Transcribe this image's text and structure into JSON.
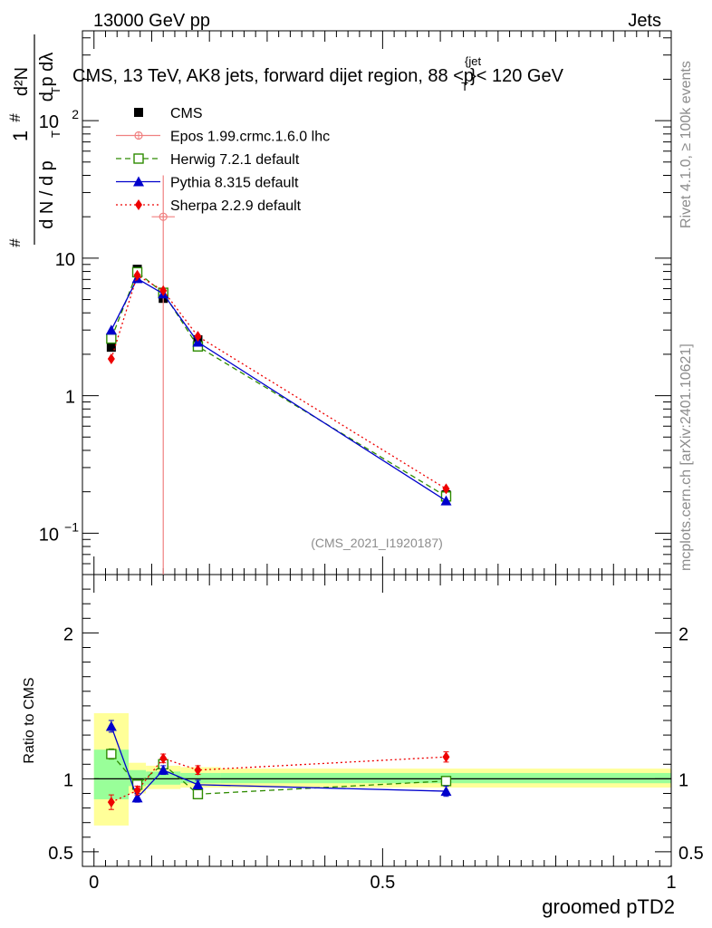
{
  "header": {
    "energy_label": "13000 GeV pp",
    "category_label": "Jets",
    "rivet_label": "Rivet 4.1.0, ≥ 100k events",
    "source_label": "mcplots.cern.ch [arXiv:2401.10621]",
    "analysis_id": "(CMS_2021_I1920187)"
  },
  "chart_data": [
    {
      "type": "line",
      "panel": "main",
      "title_prefix": "CMS, 13 TeV, AK8 jets, forward dijet region, 88 <p",
      "title_sup": "{jet",
      "title_sub": "T",
      "title_suffix": "}< 120 GeV",
      "ylabel": "1/dN/dpT dN/dpT dλ",
      "yscale": "log",
      "ylim": [
        0.05,
        450
      ],
      "xlim": [
        -0.02,
        1.0
      ],
      "yticks": [
        {
          "value": 0.1,
          "label_base": "10",
          "label_exp": "−1"
        },
        {
          "value": 1,
          "label_base": "1",
          "label_exp": ""
        },
        {
          "value": 10,
          "label_base": "10",
          "label_exp": ""
        },
        {
          "value": 100,
          "label_base": "10",
          "label_exp": "2"
        }
      ],
      "x": [
        0.03,
        0.075,
        0.12,
        0.18,
        0.61
      ],
      "series": [
        {
          "name": "CMS",
          "color": "#000000",
          "marker": "square-filled",
          "dash": "none",
          "connect": false,
          "values": [
            2.25,
            8.3,
            5.1,
            2.55,
            0.19
          ],
          "errors": [
            0.12,
            0.3,
            0.25,
            0.12,
            0.01
          ]
        },
        {
          "name": "Epos 1.99.crmc.1.6.0 lhc",
          "color": "#f08080",
          "marker": "circle-plus",
          "dash": "none",
          "connect": false,
          "points": [
            {
              "x": 0.12,
              "y": 20,
              "yerr_low": 20,
              "yerr_high": 20,
              "xerr": 0.02
            }
          ]
        },
        {
          "name": "Herwig 7.2.1 default",
          "color": "#2e8b00",
          "marker": "square-open",
          "dash": "6,4",
          "values": [
            2.6,
            7.9,
            5.6,
            2.28,
            0.185
          ]
        },
        {
          "name": "Pythia 8.315 default",
          "color": "#0000cc",
          "marker": "triangle-filled",
          "dash": "none",
          "values": [
            3.0,
            7.1,
            5.5,
            2.45,
            0.172
          ]
        },
        {
          "name": "Sherpa 2.2.9 default",
          "color": "#ee0000",
          "marker": "diamond-filled",
          "dash": "2,3",
          "values": [
            1.85,
            7.5,
            5.8,
            2.7,
            0.21
          ]
        }
      ]
    },
    {
      "type": "line",
      "panel": "ratio",
      "ylabel": "Ratio to CMS",
      "xlabel": "groomed pTD2",
      "ylim": [
        0.4,
        2.4
      ],
      "xlim": [
        -0.02,
        1.0
      ],
      "yticks": [
        {
          "value": 0.5,
          "label": "0.5"
        },
        {
          "value": 1,
          "label": "1"
        },
        {
          "value": 2,
          "label": "2"
        }
      ],
      "xticks": [
        {
          "value": 0,
          "label": "0"
        },
        {
          "value": 0.5,
          "label": "0.5"
        },
        {
          "value": 1,
          "label": "1"
        }
      ],
      "bands": [
        {
          "x0": 0.0,
          "x1": 0.06,
          "yellow": [
            0.68,
            1.45
          ],
          "green": [
            0.86,
            1.2
          ]
        },
        {
          "x0": 0.06,
          "x1": 0.09,
          "yellow": [
            0.9,
            1.11
          ],
          "green": [
            0.95,
            1.06
          ]
        },
        {
          "x0": 0.09,
          "x1": 0.15,
          "yellow": [
            0.93,
            1.09
          ],
          "green": [
            0.96,
            1.05
          ]
        },
        {
          "x0": 0.15,
          "x1": 0.22,
          "yellow": [
            0.94,
            1.08
          ],
          "green": [
            0.97,
            1.04
          ]
        },
        {
          "x0": 0.22,
          "x1": 1.0,
          "yellow": [
            0.94,
            1.07
          ],
          "green": [
            0.97,
            1.04
          ]
        }
      ],
      "x": [
        0.03,
        0.075,
        0.12,
        0.18,
        0.61
      ],
      "series": [
        {
          "name": "Herwig 7.2.1 default",
          "color": "#2e8b00",
          "marker": "square-open",
          "dash": "6,4",
          "values": [
            1.17,
            0.96,
            1.1,
            0.895,
            0.985
          ],
          "errors": [
            0.035,
            0.03,
            0.03,
            0.03,
            0.03
          ]
        },
        {
          "name": "Pythia 8.315 default",
          "color": "#0000cc",
          "marker": "triangle-filled",
          "dash": "none",
          "values": [
            1.36,
            0.87,
            1.06,
            0.96,
            0.915
          ],
          "errors": [
            0.04,
            0.03,
            0.03,
            0.03,
            0.035
          ]
        },
        {
          "name": "Sherpa 2.2.9 default",
          "color": "#ee0000",
          "marker": "diamond-filled",
          "dash": "2,3",
          "values": [
            0.84,
            0.92,
            1.14,
            1.06,
            1.15
          ],
          "errors": [
            0.05,
            0.03,
            0.03,
            0.03,
            0.035
          ]
        }
      ]
    }
  ]
}
